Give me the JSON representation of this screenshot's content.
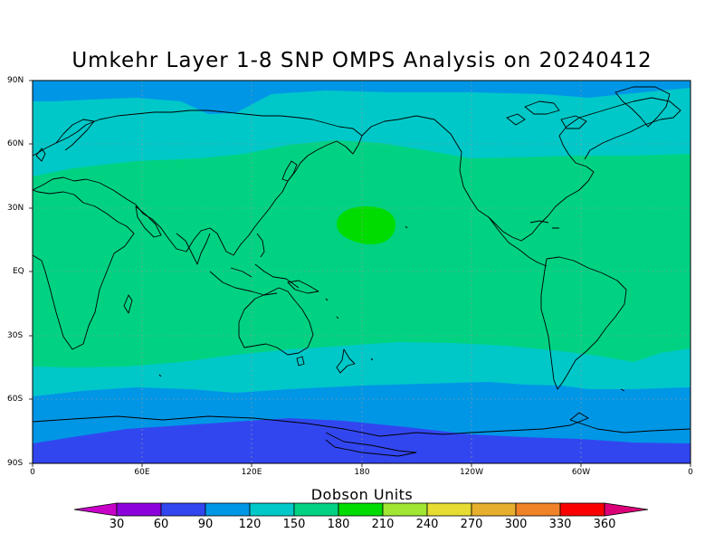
{
  "title": "Umkehr Layer 1-8 SNP OMPS Analysis on 20240412",
  "colorbar": {
    "title": "Dobson Units",
    "labels": [
      "30",
      "60",
      "90",
      "120",
      "150",
      "180",
      "210",
      "240",
      "270",
      "300",
      "330",
      "360"
    ],
    "colors": [
      "#c800c8",
      "#8c00dc",
      "#3246f0",
      "#0096e6",
      "#00c8c8",
      "#00d282",
      "#00dc00",
      "#a0e632",
      "#e6dc32",
      "#e6af2d",
      "#f08228",
      "#fa0000",
      "#dc0078"
    ]
  },
  "map": {
    "lat_labels": [
      "90N",
      "60N",
      "30N",
      "EQ",
      "30S",
      "60S",
      "90S"
    ],
    "lon_labels": [
      "0",
      "60E",
      "120E",
      "180",
      "120W",
      "60W",
      "0"
    ],
    "band_colors": {
      "polar_north": "#0096e6",
      "subpolar": "#00c8c8",
      "main": "#00d282",
      "core": "#00dc00",
      "south_mid": "#0096e6",
      "south_low": "#3246f0"
    }
  }
}
